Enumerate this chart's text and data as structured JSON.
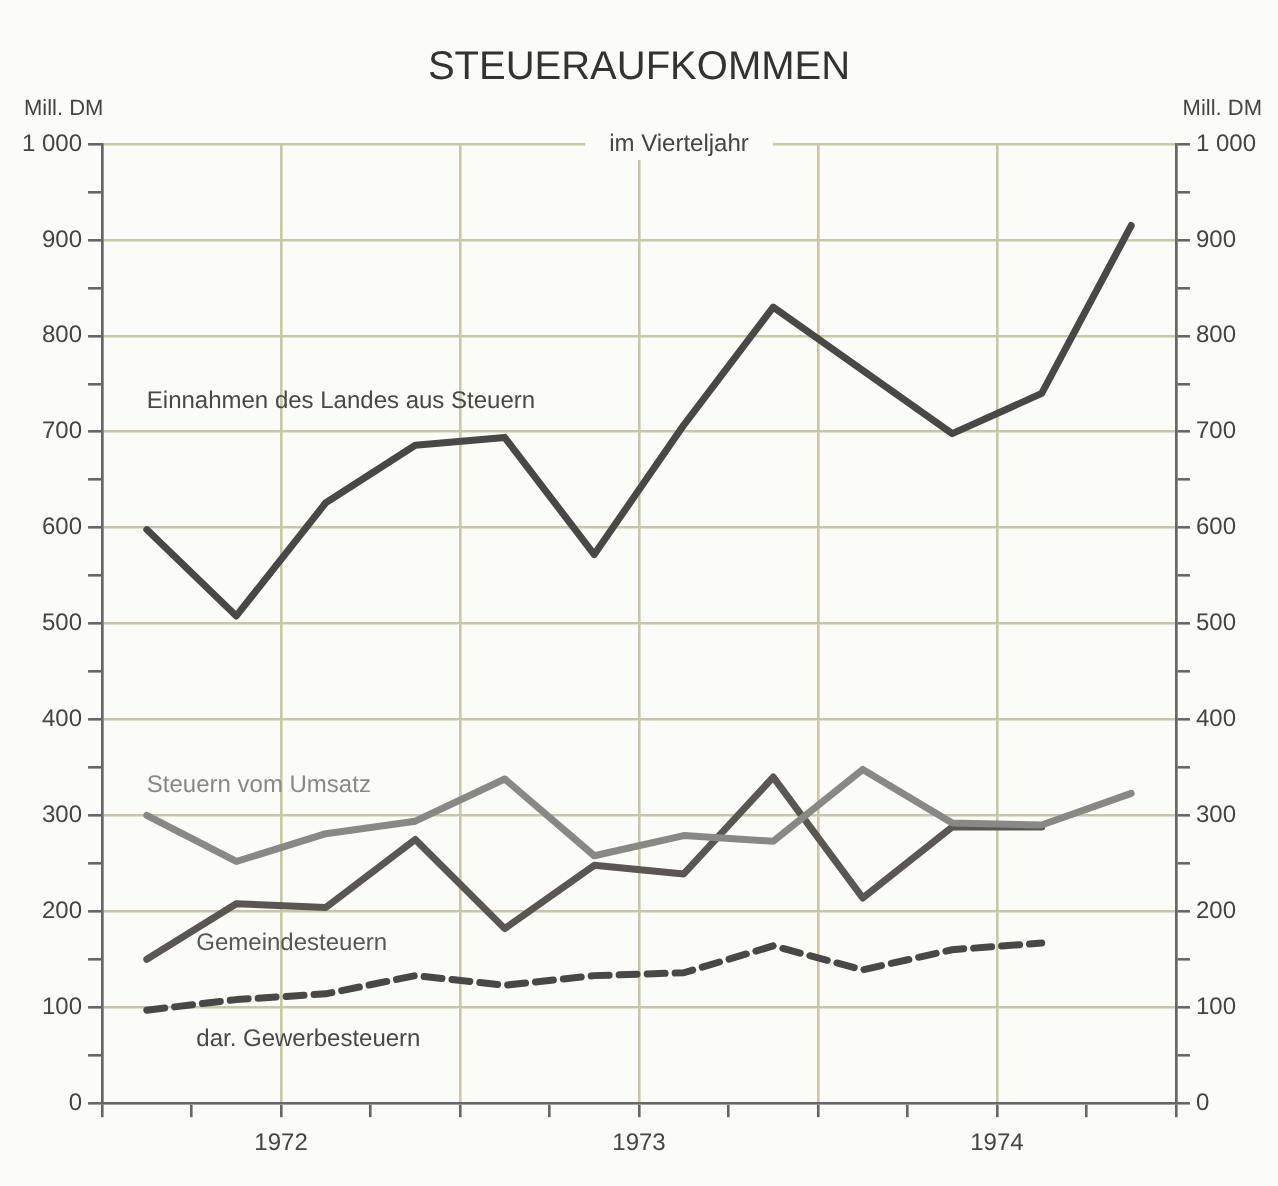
{
  "chart_data": {
    "type": "line",
    "title": "STEUERAUFKOMMEN",
    "subtitle": "im Vierteljahr",
    "ylabel": "Mill. DM",
    "y2label": "Mill. DM",
    "x": [
      1972.125,
      1972.375,
      1972.625,
      1972.875,
      1973.125,
      1973.375,
      1973.625,
      1973.875,
      1974.125,
      1974.375,
      1974.625,
      1974.875
    ],
    "xlim": [
      1972,
      1975
    ],
    "xticks": [
      {
        "value": 1972,
        "label": null
      },
      {
        "value": 1972.25,
        "label": null
      },
      {
        "value": 1972.5,
        "label": "1972"
      },
      {
        "value": 1972.75,
        "label": null
      },
      {
        "value": 1973,
        "label": null
      },
      {
        "value": 1973.25,
        "label": null
      },
      {
        "value": 1973.5,
        "label": "1973"
      },
      {
        "value": 1973.75,
        "label": null
      },
      {
        "value": 1974,
        "label": null
      },
      {
        "value": 1974.25,
        "label": null
      },
      {
        "value": 1974.5,
        "label": "1974"
      },
      {
        "value": 1974.75,
        "label": null
      },
      {
        "value": 1975,
        "label": null
      }
    ],
    "ylim": [
      0,
      1000
    ],
    "yticks": [
      0,
      {
        "value": 50,
        "label": null
      },
      100,
      {
        "value": 150,
        "label": null
      },
      200,
      {
        "value": 250,
        "label": null
      },
      300,
      {
        "value": 350,
        "label": null
      },
      400,
      {
        "value": 450,
        "label": null
      },
      500,
      {
        "value": 550,
        "label": null
      },
      600,
      {
        "value": 650,
        "label": null
      },
      700,
      {
        "value": 750,
        "label": null
      },
      800,
      {
        "value": 850,
        "label": null
      },
      900,
      {
        "value": 950,
        "label": null
      },
      {
        "value": 1000,
        "label": "1 000"
      }
    ],
    "y2lim": [
      0,
      1000
    ],
    "y2ticks": [
      0,
      {
        "value": 50,
        "label": null
      },
      100,
      {
        "value": 150,
        "label": null
      },
      200,
      {
        "value": 250,
        "label": null
      },
      300,
      {
        "value": 350,
        "label": null
      },
      400,
      {
        "value": 450,
        "label": null
      },
      500,
      {
        "value": 550,
        "label": null
      },
      600,
      {
        "value": 650,
        "label": null
      },
      700,
      {
        "value": 750,
        "label": null
      },
      800,
      {
        "value": 850,
        "label": null
      },
      900,
      {
        "value": 950,
        "label": null
      },
      {
        "value": 1000,
        "label": "1 000"
      }
    ],
    "series": [
      {
        "name": "Einnahmen des Landes aus Steuern",
        "color": "#4a4846",
        "values": [
          598,
          508,
          626,
          686,
          694,
          572,
          707,
          830,
          764,
          698,
          740,
          915
        ]
      },
      {
        "name": "Steuern vom Umsatz",
        "color": "#8a8884",
        "values": [
          300,
          252,
          281,
          294,
          338,
          258,
          279,
          273,
          348,
          292,
          290,
          323
        ]
      },
      {
        "name": "Gemeindesteuern",
        "color": "#5a5652",
        "values": [
          150,
          208,
          204,
          275,
          182,
          248,
          239,
          340,
          214,
          288,
          288,
          null
        ]
      },
      {
        "name": "dar. Gewerbesteuern",
        "color": "#4a4846",
        "line_style": "dashed",
        "values": [
          97,
          108,
          114,
          133,
          123,
          133,
          136,
          164,
          139,
          160,
          167,
          null
        ]
      }
    ],
    "grid": true,
    "legend": false
  }
}
